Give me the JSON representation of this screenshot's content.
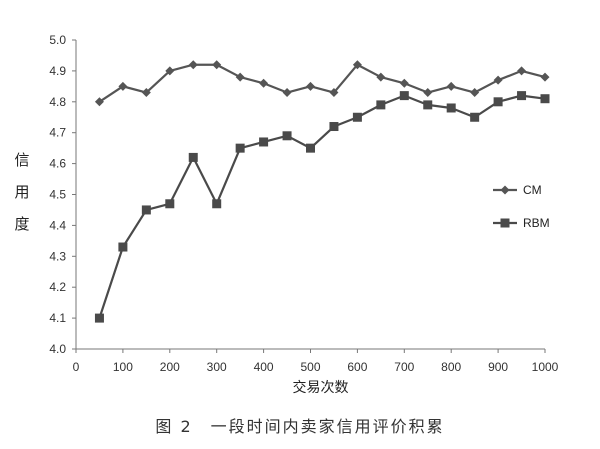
{
  "chart_data": {
    "type": "line",
    "ylabel": "信用度",
    "xlabel": "交易次数",
    "xlim": [
      0,
      1000
    ],
    "ylim": [
      4.0,
      5.0
    ],
    "xticks": [
      0,
      100,
      200,
      300,
      400,
      500,
      600,
      700,
      800,
      900,
      1000
    ],
    "yticks": [
      "4.0",
      "4.1",
      "4.2",
      "4.3",
      "4.4",
      "4.5",
      "4.6",
      "4.7",
      "4.8",
      "4.9",
      "5.0"
    ],
    "grid": false,
    "legend_position": "right",
    "x": [
      50,
      100,
      150,
      200,
      250,
      300,
      350,
      400,
      450,
      500,
      550,
      600,
      650,
      700,
      750,
      800,
      850,
      900,
      950,
      1000
    ],
    "series": [
      {
        "name": "CM",
        "marker": "diamond",
        "color": "#555555",
        "values": [
          4.8,
          4.85,
          4.83,
          4.9,
          4.92,
          4.92,
          4.88,
          4.86,
          4.83,
          4.85,
          4.83,
          4.92,
          4.88,
          4.86,
          4.83,
          4.85,
          4.83,
          4.87,
          4.9,
          4.88
        ]
      },
      {
        "name": "RBM",
        "marker": "square",
        "color": "#4a4a4a",
        "values": [
          4.1,
          4.33,
          4.45,
          4.47,
          4.62,
          4.47,
          4.65,
          4.67,
          4.69,
          4.65,
          4.72,
          4.75,
          4.79,
          4.82,
          4.79,
          4.78,
          4.75,
          4.8,
          4.82,
          4.81
        ]
      }
    ]
  },
  "caption": "图 2　一段时间内卖家信用评价积累"
}
